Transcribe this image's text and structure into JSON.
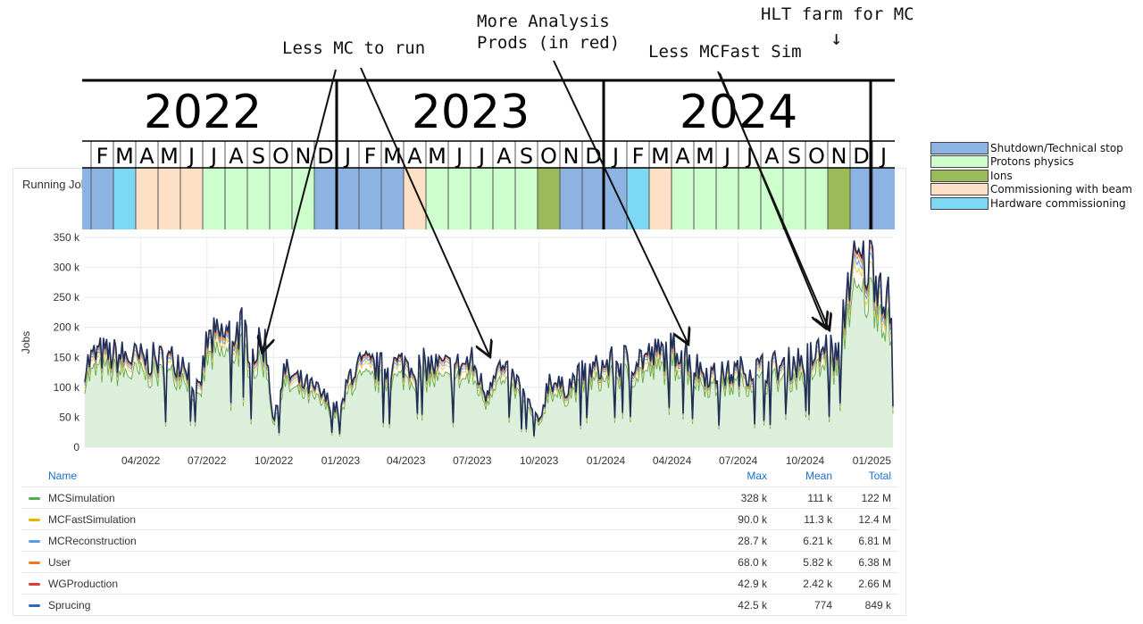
{
  "panel": {
    "title": "Running Jobs"
  },
  "timeline": {
    "years": [
      "2022",
      "2023",
      "2024"
    ],
    "months": [
      "J",
      "F",
      "M",
      "A",
      "M",
      "J",
      "J",
      "A",
      "S",
      "O",
      "N",
      "D",
      "J",
      "F",
      "M",
      "A",
      "M",
      "J",
      "J",
      "A",
      "S",
      "O",
      "N",
      "D",
      "J",
      "F",
      "M",
      "A",
      "M",
      "J",
      "J",
      "A",
      "S",
      "O",
      "N",
      "D",
      "J"
    ],
    "month_status": [
      "shutdown",
      "shutdown",
      "hardware",
      "commissioning",
      "commissioning",
      "commissioning",
      "protons",
      "protons",
      "protons",
      "protons",
      "protons",
      "shutdown",
      "shutdown",
      "shutdown",
      "shutdown",
      "commissioning",
      "protons",
      "protons",
      "protons",
      "protons",
      "protons",
      "ions",
      "shutdown",
      "shutdown",
      "shutdown",
      "hardware",
      "commissioning",
      "protons",
      "protons",
      "protons",
      "protons",
      "protons",
      "protons",
      "protons",
      "ions",
      "shutdown",
      "shutdown"
    ],
    "colors": {
      "shutdown": "#8db3e2",
      "protons": "#ccffcc",
      "ions": "#9bbb59",
      "commissioning": "#fde0c5",
      "hardware": "#7dd8f6"
    }
  },
  "legend": [
    {
      "label": "Shutdown/Technical stop",
      "color": "#8db3e2"
    },
    {
      "label": "Protons physics",
      "color": "#ccffcc"
    },
    {
      "label": "Ions",
      "color": "#9bbb59"
    },
    {
      "label": "Commissioning with beam",
      "color": "#fde0c5"
    },
    {
      "label": "Hardware commissioning",
      "color": "#7dd8f6"
    }
  ],
  "annotations": {
    "less_mc": "Less MC to run",
    "more_analysis": "More Analysis\nProds (in red)",
    "less_mcfast": "Less MCFast Sim",
    "hlt_farm": "HLT farm for MC",
    "hlt_arrow": "↓"
  },
  "chart_data": {
    "type": "area",
    "ylabel": "Jobs",
    "yticks": [
      "350 k",
      "300 k",
      "250 k",
      "200 k",
      "150 k",
      "100 k",
      "50 k",
      "0"
    ],
    "xticks": [
      "04/2022",
      "07/2022",
      "10/2022",
      "01/2023",
      "04/2023",
      "07/2023",
      "10/2023",
      "01/2024",
      "04/2024",
      "07/2024",
      "10/2024",
      "01/2025"
    ],
    "ylim": [
      0,
      350000
    ],
    "x_range": [
      "2022-01-14",
      "2025-01-30"
    ],
    "total_series": {
      "name": "Total",
      "x": [
        "2022-01-14",
        "2022-02-01",
        "2022-03-01",
        "2022-04-01",
        "2022-05-01",
        "2022-06-01",
        "2022-06-20",
        "2022-07-01",
        "2022-08-01",
        "2022-08-20",
        "2022-09-01",
        "2022-09-20",
        "2022-10-01",
        "2022-10-15",
        "2022-11-01",
        "2022-12-01",
        "2023-01-01",
        "2023-01-15",
        "2023-02-01",
        "2023-03-01",
        "2023-04-01",
        "2023-05-01",
        "2023-06-01",
        "2023-07-01",
        "2023-07-20",
        "2023-08-01",
        "2023-09-01",
        "2023-10-01",
        "2023-10-15",
        "2023-11-01",
        "2023-12-01",
        "2024-01-01",
        "2024-02-01",
        "2024-03-01",
        "2024-04-01",
        "2024-04-15",
        "2024-05-01",
        "2024-06-01",
        "2024-07-01",
        "2024-08-01",
        "2024-09-01",
        "2024-10-01",
        "2024-10-20",
        "2024-11-01",
        "2024-11-15",
        "2024-12-01",
        "2024-12-15",
        "2025-01-01",
        "2025-01-15",
        "2025-01-30"
      ],
      "values": [
        140000,
        160000,
        155000,
        150000,
        148000,
        150000,
        90000,
        180000,
        195000,
        205000,
        160000,
        180000,
        40000,
        130000,
        115000,
        95000,
        60000,
        130000,
        140000,
        135000,
        145000,
        140000,
        135000,
        145000,
        90000,
        140000,
        110000,
        40000,
        120000,
        100000,
        125000,
        140000,
        150000,
        155000,
        165000,
        175000,
        140000,
        120000,
        130000,
        135000,
        140000,
        150000,
        160000,
        170000,
        150000,
        300000,
        310000,
        320000,
        280000,
        220000
      ]
    },
    "series_summary_columns": [
      "Name",
      "Max",
      "Mean",
      "Total"
    ],
    "series": [
      {
        "name": "MCSimulation",
        "max": "328 k",
        "mean": "111 k",
        "total": "122 M",
        "color": "#4caf50"
      },
      {
        "name": "MCFastSimulation",
        "max": "90.0 k",
        "mean": "11.3 k",
        "total": "12.4 M",
        "color": "#e8b400"
      },
      {
        "name": "MCReconstruction",
        "max": "28.7 k",
        "mean": "6.21 k",
        "total": "6.81 M",
        "color": "#5a9be6"
      },
      {
        "name": "User",
        "max": "68.0 k",
        "mean": "5.82 k",
        "total": "6.38 M",
        "color": "#f07820"
      },
      {
        "name": "WGProduction",
        "max": "42.9 k",
        "mean": "2.42 k",
        "total": "2.66 M",
        "color": "#d93a3a"
      },
      {
        "name": "Sprucing",
        "max": "42.5 k",
        "mean": "774",
        "total": "849 k",
        "color": "#2c6cc4"
      }
    ]
  }
}
